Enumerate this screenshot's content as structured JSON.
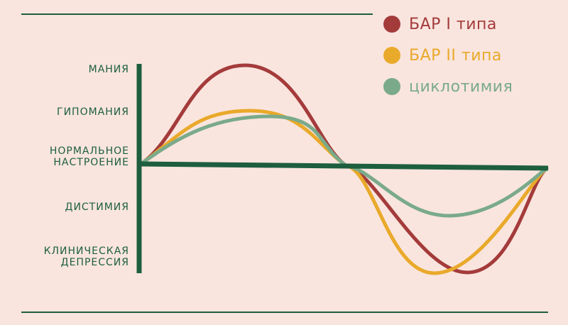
{
  "diagram": {
    "levels": [
      {
        "key": "mania",
        "label": "мания"
      },
      {
        "key": "hypomania",
        "label": "гипомания"
      },
      {
        "key": "normal",
        "label": "нормальное\nнастроение"
      },
      {
        "key": "dysthymia",
        "label": "дистимия"
      },
      {
        "key": "depression",
        "label": "клиническая\nдепрессия"
      }
    ],
    "legend": [
      {
        "label": "БАР I типа",
        "color": "#a43b3b"
      },
      {
        "label": "БАР II типа",
        "color": "#e9a92a"
      },
      {
        "label": "циклотимия",
        "color": "#7aaa8a"
      }
    ],
    "curves": [
      {
        "name": "БАР I типа",
        "color": "#a43b3b",
        "peak_level": "mania",
        "trough_level": "depression"
      },
      {
        "name": "БАР II типа",
        "color": "#e9a92a",
        "peak_level": "hypomania",
        "trough_level": "depression"
      },
      {
        "name": "циклотимия",
        "color": "#7aaa8a",
        "peak_level": "hypomania",
        "trough_level": "dysthymia"
      }
    ],
    "colors": {
      "axis": "#1d5e3f",
      "background": "#f9e5de",
      "label": "#1d5e3f"
    }
  }
}
